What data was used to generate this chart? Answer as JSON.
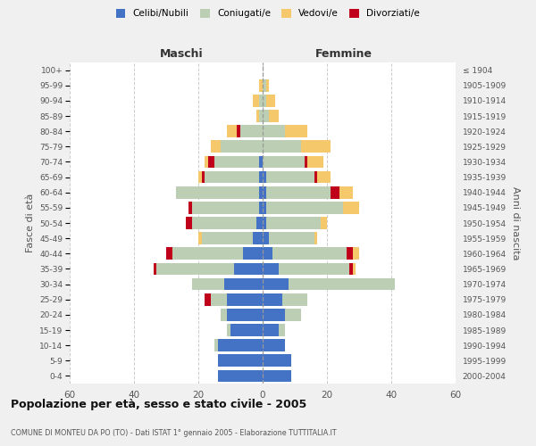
{
  "age_groups": [
    "0-4",
    "5-9",
    "10-14",
    "15-19",
    "20-24",
    "25-29",
    "30-34",
    "35-39",
    "40-44",
    "45-49",
    "50-54",
    "55-59",
    "60-64",
    "65-69",
    "70-74",
    "75-79",
    "80-84",
    "85-89",
    "90-94",
    "95-99",
    "100+"
  ],
  "birth_years": [
    "2000-2004",
    "1995-1999",
    "1990-1994",
    "1985-1989",
    "1980-1984",
    "1975-1979",
    "1970-1974",
    "1965-1969",
    "1960-1964",
    "1955-1959",
    "1950-1954",
    "1945-1949",
    "1940-1944",
    "1935-1939",
    "1930-1934",
    "1925-1929",
    "1920-1924",
    "1915-1919",
    "1910-1914",
    "1905-1909",
    "≤ 1904"
  ],
  "males": {
    "celibi": [
      14,
      14,
      14,
      10,
      11,
      11,
      12,
      9,
      6,
      3,
      2,
      1,
      1,
      1,
      1,
      0,
      0,
      0,
      0,
      0,
      0
    ],
    "coniugati": [
      0,
      0,
      1,
      1,
      2,
      5,
      10,
      24,
      22,
      16,
      20,
      21,
      26,
      17,
      14,
      13,
      7,
      1,
      1,
      0,
      0
    ],
    "vedovi": [
      0,
      0,
      0,
      0,
      0,
      0,
      0,
      0,
      0,
      1,
      0,
      0,
      0,
      1,
      1,
      3,
      3,
      1,
      2,
      1,
      0
    ],
    "divorziati": [
      0,
      0,
      0,
      0,
      0,
      2,
      0,
      1,
      2,
      0,
      2,
      1,
      0,
      1,
      2,
      0,
      1,
      0,
      0,
      0,
      0
    ]
  },
  "females": {
    "nubili": [
      9,
      9,
      7,
      5,
      7,
      6,
      8,
      5,
      3,
      2,
      1,
      1,
      1,
      1,
      0,
      0,
      0,
      0,
      0,
      0,
      0
    ],
    "coniugate": [
      0,
      0,
      0,
      2,
      5,
      8,
      33,
      22,
      23,
      14,
      17,
      24,
      20,
      15,
      13,
      12,
      7,
      2,
      1,
      1,
      0
    ],
    "vedove": [
      0,
      0,
      0,
      0,
      0,
      0,
      0,
      1,
      2,
      1,
      2,
      5,
      4,
      4,
      5,
      9,
      7,
      3,
      3,
      1,
      0
    ],
    "divorziate": [
      0,
      0,
      0,
      0,
      0,
      0,
      0,
      1,
      2,
      0,
      0,
      0,
      3,
      1,
      1,
      0,
      0,
      0,
      0,
      0,
      0
    ]
  },
  "colors": {
    "celibi": "#4472C4",
    "coniugati": "#BCCFB4",
    "vedovi": "#F5C96B",
    "divorziati": "#C0001A"
  },
  "xlim": 60,
  "title": "Popolazione per età, sesso e stato civile - 2005",
  "subtitle": "COMUNE DI MONTEU DA PO (TO) - Dati ISTAT 1° gennaio 2005 - Elaborazione TUTTITALIA.IT",
  "ylabel_left": "Fasce di età",
  "ylabel_right": "Anni di nascita",
  "xlabel_maschi": "Maschi",
  "xlabel_femmine": "Femmine",
  "legend_labels": [
    "Celibi/Nubili",
    "Coniugati/e",
    "Vedovi/e",
    "Divorziati/e"
  ],
  "bg_color": "#f0f0f0",
  "plot_bg": "#ffffff",
  "xticks": [
    -60,
    -40,
    -20,
    0,
    20,
    40,
    60
  ]
}
